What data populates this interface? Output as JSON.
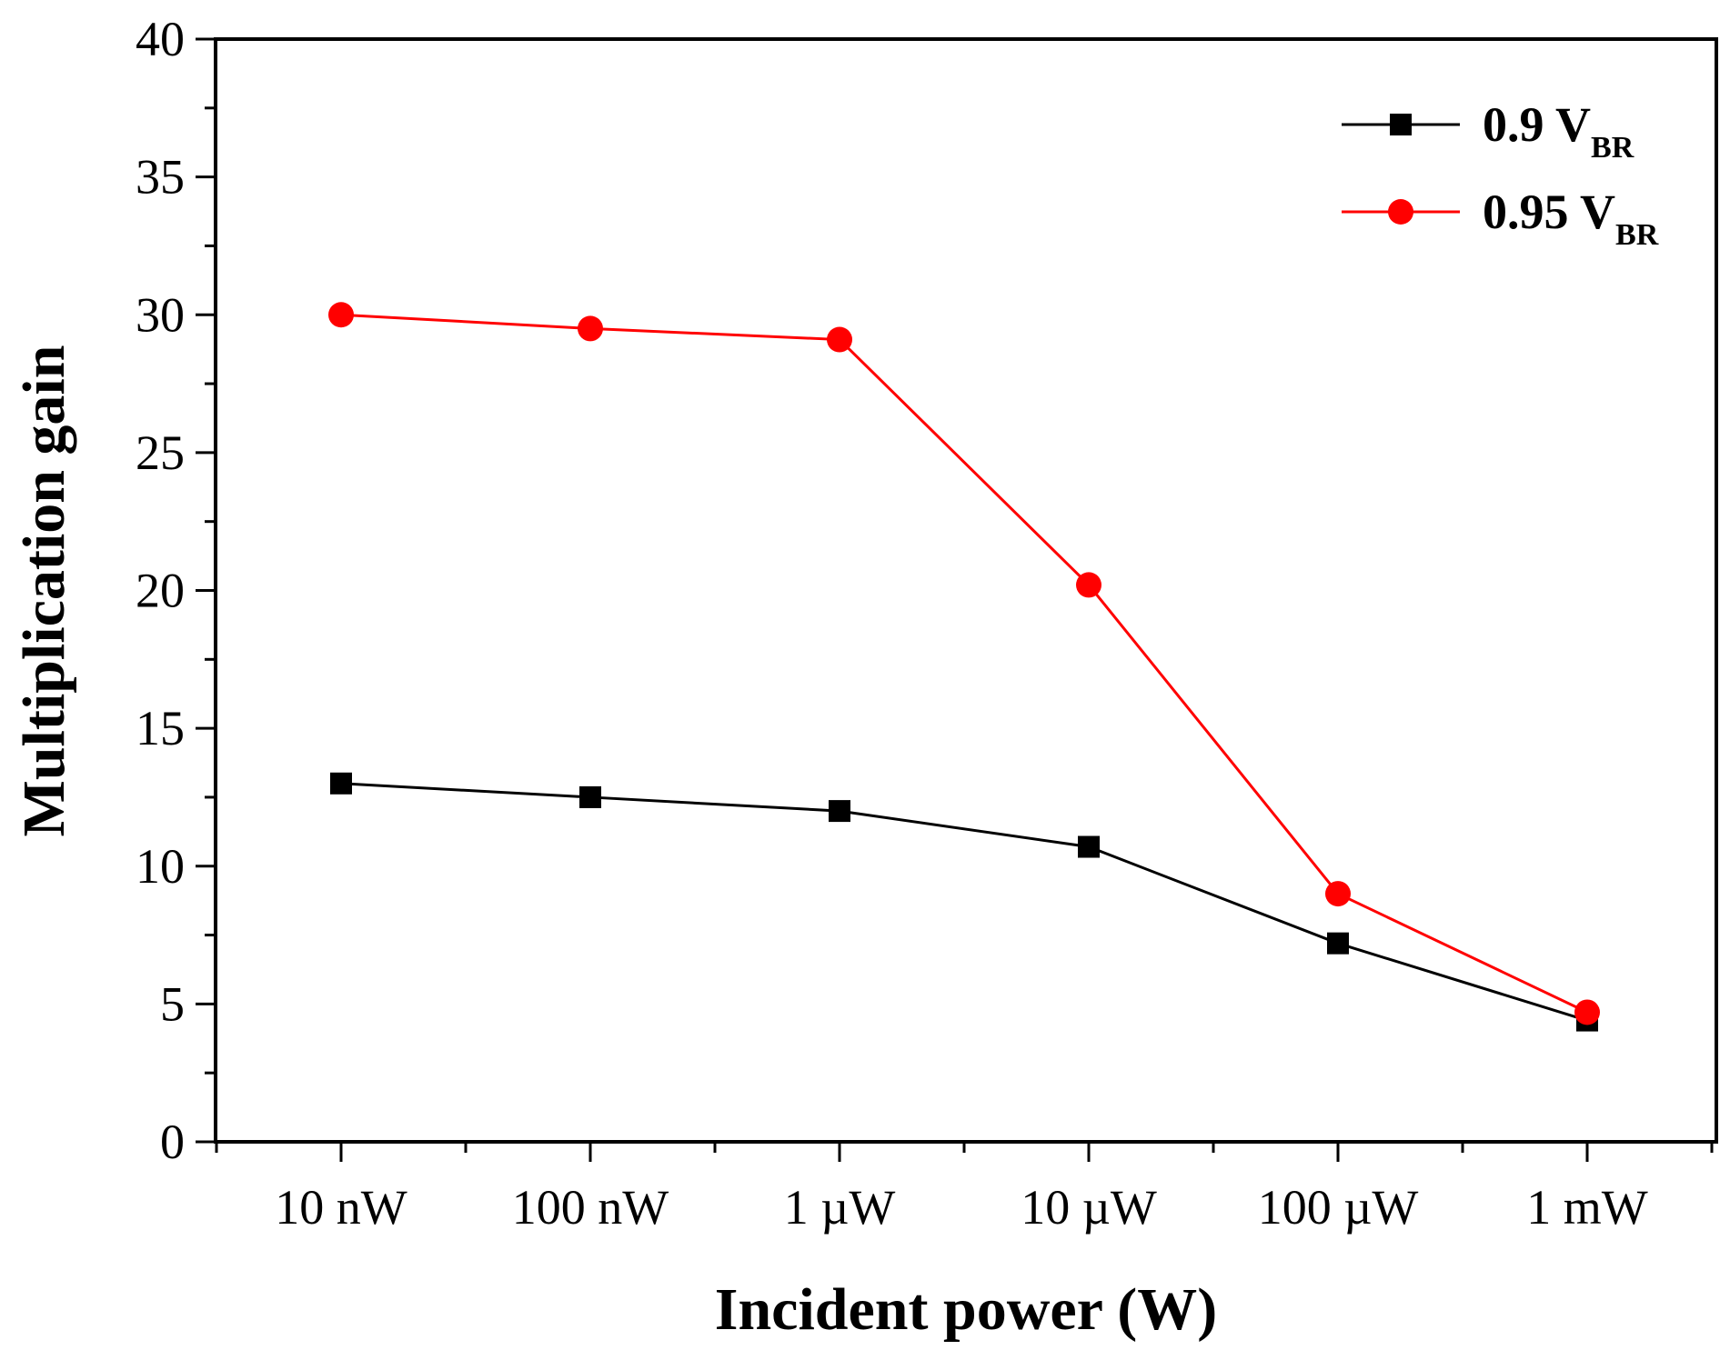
{
  "chart_data": {
    "type": "line",
    "xlabel": "Incident power (W)",
    "ylabel": "Multiplication gain",
    "categories": [
      "10 nW",
      "100 nW",
      "1 µW",
      "10 µW",
      "100 µW",
      "1 mW"
    ],
    "ylim": [
      0,
      40
    ],
    "yticks": [
      "0",
      "5",
      "10",
      "15",
      "20",
      "25",
      "30",
      "35",
      "40"
    ],
    "grid": false,
    "legend_position": "top-right",
    "series": [
      {
        "name": "0.9 V",
        "name_subscript": "BR",
        "color": "#000000",
        "marker": "square",
        "values": [
          13.0,
          12.5,
          12.0,
          10.7,
          7.2,
          4.4
        ]
      },
      {
        "name": "0.95 V",
        "name_subscript": "BR",
        "color": "#ff0000",
        "marker": "circle",
        "values": [
          30.0,
          29.5,
          29.1,
          20.2,
          9.0,
          4.7
        ]
      }
    ]
  }
}
